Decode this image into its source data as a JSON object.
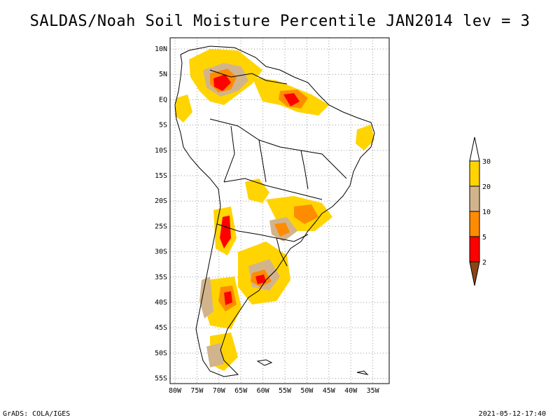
{
  "title": "SALDAS/Noah Soil Moisture Percentile JAN2014 lev = 3",
  "footer": {
    "left": "GrADS: COLA/IGES",
    "right": "2021-05-12-17:40"
  },
  "axes": {
    "lat_labels": [
      "10N",
      "5N",
      "EQ",
      "5S",
      "10S",
      "15S",
      "20S",
      "25S",
      "30S",
      "35S",
      "40S",
      "45S",
      "50S",
      "55S"
    ],
    "lon_labels": [
      "80W",
      "75W",
      "70W",
      "65W",
      "60W",
      "55W",
      "50W",
      "45W",
      "40W",
      "35W"
    ]
  },
  "legend": {
    "labels": [
      "30",
      "20",
      "10",
      "5",
      "2"
    ],
    "colors": [
      "#ffd400",
      "#d2b48c",
      "#ff8c00",
      "#ff0000",
      "#8b4513"
    ],
    "top_color": "#ffffff"
  },
  "colors": {
    "frame": "#000000",
    "grid": "#999999",
    "coast": "#000000",
    "yellow": "#ffd400",
    "tan": "#d2b48c",
    "orange": "#ff8c00",
    "red": "#ff0000"
  }
}
